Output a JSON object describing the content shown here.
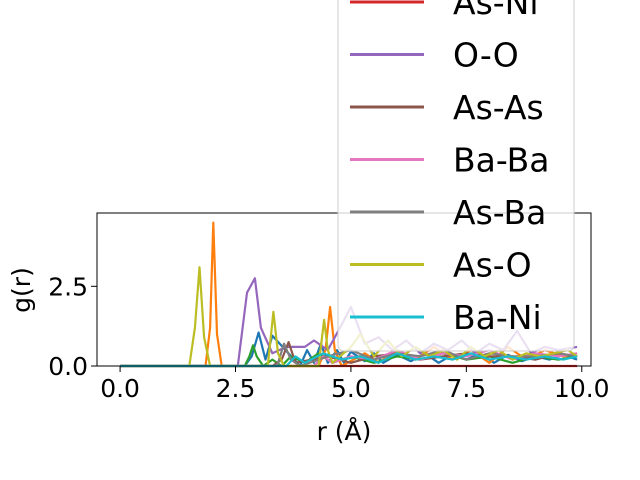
{
  "chart_data": {
    "type": "line",
    "xlabel": "r (Å)",
    "ylabel": "g(r)",
    "xlim": [
      -0.5,
      10.2
    ],
    "ylim": [
      0,
      4.8
    ],
    "xticks": [
      {
        "value": 0,
        "label": "0.0"
      },
      {
        "value": 2.5,
        "label": "2.5"
      },
      {
        "value": 5,
        "label": "5.0"
      },
      {
        "value": 7.5,
        "label": "7.5"
      },
      {
        "value": 10,
        "label": "10.0"
      }
    ],
    "yticks": [
      {
        "value": 0,
        "label": "0.0"
      },
      {
        "value": 2.5,
        "label": "2.5"
      }
    ],
    "grid": false,
    "legend_position": "upper-right",
    "series": [
      {
        "name": "",
        "color": "#1f77b4",
        "x": [
          0,
          2.7,
          2.85,
          3.0,
          3.15,
          3.3,
          3.9,
          4.05,
          4.2,
          4.35,
          4.5,
          4.7,
          4.85,
          5.0,
          5.3,
          5.5,
          5.7,
          6.0,
          6.3,
          6.6,
          6.9,
          7.2,
          7.5,
          7.8,
          8.1,
          8.4,
          8.7,
          9.0,
          9.3,
          9.6,
          9.9
        ],
        "y": [
          0,
          0,
          0.3,
          1.05,
          0.2,
          0.95,
          0,
          0.5,
          0.1,
          0.7,
          0.1,
          0.5,
          0.1,
          0.45,
          0.15,
          0.4,
          0.1,
          0.35,
          0.15,
          0.4,
          0.1,
          0.35,
          0.2,
          0.4,
          0.1,
          0.35,
          0.15,
          0.3,
          0.2,
          0.35,
          0.2
        ]
      },
      {
        "name": "",
        "color": "#ff7f0e",
        "x": [
          0,
          1.85,
          1.95,
          2.02,
          2.1,
          2.2,
          4.3,
          4.45,
          4.55,
          4.65,
          4.8,
          5.3,
          5.6,
          6.0,
          6.4,
          6.8,
          7.2,
          7.6,
          8.0,
          8.4,
          8.8,
          9.2,
          9.6,
          9.9
        ],
        "y": [
          0,
          0,
          1.2,
          4.5,
          1.0,
          0,
          0,
          0.5,
          1.85,
          0.5,
          0,
          0.4,
          0.1,
          0.5,
          0.2,
          0.6,
          0.2,
          0.5,
          0.1,
          0.6,
          0.2,
          0.5,
          0.3,
          0.4
        ]
      },
      {
        "name": "",
        "color": "#2ca02c",
        "x": [
          0,
          2.7,
          2.8,
          2.88,
          2.96,
          3.1,
          3.3,
          3.5,
          3.7,
          4.0,
          4.3,
          4.6,
          5.0,
          5.5,
          6.0,
          6.5,
          7.0,
          7.5,
          8.0,
          8.5,
          9.0,
          9.5,
          9.9
        ],
        "y": [
          0,
          0,
          0.3,
          0.65,
          0.3,
          0,
          0.2,
          0,
          0.3,
          0.1,
          0.4,
          0.1,
          0.3,
          0.1,
          0.3,
          0.2,
          0.4,
          0.2,
          0.3,
          0.1,
          0.3,
          0.2,
          0.3
        ]
      },
      {
        "name": "As-Ni",
        "color": "#d62728",
        "x": [
          0,
          9.9
        ],
        "y": [
          0,
          0
        ]
      },
      {
        "name": "O-O",
        "color": "#9467bd",
        "x": [
          0,
          2.55,
          2.75,
          2.92,
          3.05,
          3.3,
          3.6,
          4.0,
          4.2,
          4.5,
          4.8,
          5.0,
          5.3,
          5.6,
          5.9,
          6.2,
          6.5,
          6.8,
          7.1,
          7.4,
          7.7,
          8.0,
          8.3,
          8.6,
          8.9,
          9.2,
          9.5,
          9.9
        ],
        "y": [
          0,
          0,
          2.3,
          2.75,
          1.2,
          0.4,
          0.6,
          0.6,
          0.8,
          0.5,
          1.3,
          1.85,
          0.7,
          0.9,
          0.5,
          0.8,
          0.4,
          0.7,
          0.5,
          0.8,
          0.4,
          0.7,
          0.5,
          1.1,
          0.4,
          0.6,
          0.5,
          0.6
        ]
      },
      {
        "name": "As-As",
        "color": "#8c564b",
        "x": [
          0,
          3.3,
          3.5,
          3.65,
          3.8,
          4.5,
          5.0,
          5.5,
          6.0,
          6.5,
          7.0,
          7.5,
          8.0,
          8.5,
          9.0,
          9.5,
          9.9
        ],
        "y": [
          0,
          0,
          0.2,
          0.75,
          0.1,
          0.3,
          0.1,
          0.3,
          0.4,
          0.2,
          0.3,
          0.4,
          0.3,
          0.3,
          0.2,
          0.4,
          0.3
        ]
      },
      {
        "name": "Ba-Ba",
        "color": "#e377c2",
        "x": [
          0,
          4.2,
          4.4,
          4.6,
          5.0,
          5.5,
          6.0,
          6.5,
          7.0,
          7.5,
          8.0,
          8.5,
          9.0,
          9.5,
          9.9
        ],
        "y": [
          0,
          0,
          0.3,
          0.1,
          0.3,
          0.2,
          0.5,
          0.2,
          0.4,
          0.3,
          0.5,
          0.2,
          0.4,
          0.3,
          0.4
        ]
      },
      {
        "name": "As-Ba",
        "color": "#7f7f7f",
        "x": [
          0,
          3.4,
          3.55,
          3.7,
          3.9,
          4.5,
          5.0,
          5.5,
          6.0,
          6.5,
          7.0,
          7.5,
          8.0,
          8.5,
          9.0,
          9.5,
          9.9
        ],
        "y": [
          0,
          0,
          0.7,
          0.2,
          0,
          0.3,
          0.5,
          0.2,
          0.4,
          0.3,
          0.5,
          0.2,
          0.4,
          0.3,
          0.3,
          0.4,
          0.3
        ]
      },
      {
        "name": "As-O",
        "color": "#bcbd22",
        "x": [
          0,
          1.5,
          1.62,
          1.72,
          1.82,
          1.95,
          3.2,
          3.32,
          3.42,
          3.55,
          4.3,
          4.42,
          4.5,
          4.6,
          5.0,
          5.2,
          5.5,
          5.8,
          6.1,
          6.4,
          6.7,
          7.0,
          7.3,
          7.6,
          7.9,
          8.2,
          8.5,
          8.8,
          9.1,
          9.4,
          9.7,
          9.9
        ],
        "y": [
          0,
          0,
          1.2,
          3.1,
          0.9,
          0,
          0,
          1.7,
          0.4,
          0,
          0,
          1.45,
          0.5,
          0.1,
          0.6,
          1.0,
          0.3,
          0.8,
          0.3,
          0.6,
          0.3,
          0.5,
          0.2,
          0.6,
          0.3,
          0.5,
          0.2,
          0.4,
          0.3,
          0.4,
          0.5,
          0.3
        ]
      },
      {
        "name": "Ba-Ni",
        "color": "#17becf",
        "x": [
          0,
          3.6,
          3.8,
          4.0,
          4.4,
          4.8,
          5.2,
          5.6,
          6.0,
          6.4,
          6.8,
          7.2,
          7.6,
          8.0,
          8.4,
          8.8,
          9.2,
          9.6,
          9.9
        ],
        "y": [
          0,
          0,
          0.3,
          0.1,
          0.4,
          0.2,
          0.3,
          0.1,
          0.4,
          0.2,
          0.3,
          0.2,
          0.4,
          0.2,
          0.3,
          0.2,
          0.3,
          0.2,
          0.3
        ]
      }
    ]
  }
}
